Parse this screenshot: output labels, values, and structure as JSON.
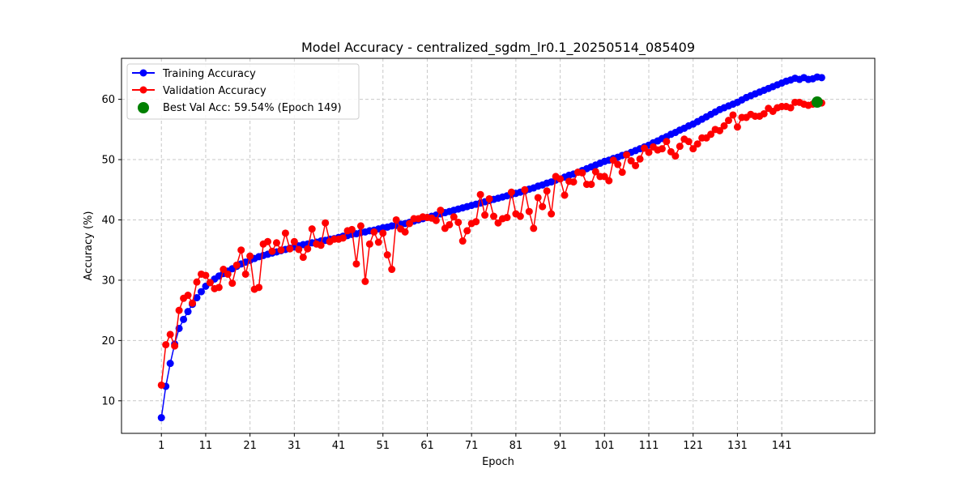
{
  "chart_data": {
    "type": "line",
    "title": "Model Accuracy - centralized_sgdm_lr0.1_20250514_085409",
    "xlabel": "Epoch",
    "ylabel": "Accuracy (%)",
    "xlim": [
      -8,
      162
    ],
    "ylim": [
      4.6,
      66.8
    ],
    "xticks": [
      1,
      11,
      21,
      31,
      41,
      51,
      61,
      71,
      81,
      91,
      101,
      111,
      121,
      131,
      141
    ],
    "yticks": [
      10,
      20,
      30,
      40,
      50,
      60
    ],
    "grid": true,
    "legend_position": "top-left",
    "series": [
      {
        "name": "Training Accuracy",
        "color": "#0000ff",
        "x_start": 1,
        "values": [
          7.2,
          12.4,
          16.2,
          19.4,
          22.0,
          23.5,
          24.8,
          26.0,
          27.1,
          28.1,
          29.0,
          29.6,
          30.2,
          30.7,
          31.1,
          31.5,
          31.9,
          32.3,
          32.7,
          33.0,
          33.3,
          33.6,
          33.9,
          34.1,
          34.3,
          34.5,
          34.7,
          34.9,
          35.1,
          35.3,
          35.5,
          35.7,
          35.9,
          36.0,
          36.2,
          36.3,
          36.5,
          36.6,
          36.8,
          36.9,
          37.1,
          37.3,
          37.4,
          37.6,
          37.7,
          37.9,
          38.0,
          38.2,
          38.3,
          38.5,
          38.7,
          38.8,
          39.0,
          39.1,
          39.3,
          39.4,
          39.6,
          39.8,
          40.0,
          40.2,
          40.4,
          40.6,
          40.8,
          41.0,
          41.2,
          41.4,
          41.6,
          41.8,
          42.0,
          42.2,
          42.4,
          42.6,
          42.8,
          43.0,
          43.2,
          43.4,
          43.6,
          43.8,
          44.0,
          44.2,
          44.4,
          44.6,
          44.8,
          45.1,
          45.3,
          45.6,
          45.8,
          46.1,
          46.3,
          46.6,
          46.8,
          47.1,
          47.4,
          47.6,
          47.9,
          48.2,
          48.5,
          48.8,
          49.1,
          49.4,
          49.7,
          49.9,
          50.2,
          50.4,
          50.7,
          50.9,
          51.2,
          51.5,
          51.8,
          52.1,
          52.4,
          52.8,
          53.1,
          53.5,
          53.8,
          54.2,
          54.5,
          54.9,
          55.2,
          55.6,
          55.9,
          56.3,
          56.7,
          57.1,
          57.5,
          57.9,
          58.3,
          58.6,
          58.9,
          59.2,
          59.5,
          59.9,
          60.3,
          60.6,
          60.9,
          61.2,
          61.5,
          61.8,
          62.1,
          62.4,
          62.7,
          63.0,
          63.2,
          63.5,
          63.3,
          63.6,
          63.3,
          63.4,
          63.7,
          63.6
        ]
      },
      {
        "name": "Validation Accuracy",
        "color": "#ff0000",
        "x_start": 1,
        "values": [
          12.6,
          19.3,
          21.0,
          19.1,
          25.0,
          27.0,
          27.5,
          26.2,
          29.7,
          31.0,
          30.8,
          29.6,
          28.6,
          28.8,
          31.8,
          31.0,
          29.5,
          32.5,
          35.0,
          31.0,
          34.0,
          28.5,
          28.8,
          36.0,
          36.4,
          34.8,
          36.2,
          35.0,
          37.8,
          35.2,
          36.4,
          35.1,
          33.8,
          35.2,
          38.5,
          36.0,
          35.8,
          39.5,
          36.4,
          36.8,
          36.8,
          37.0,
          38.2,
          38.4,
          32.7,
          39.0,
          29.8,
          36.0,
          38.0,
          36.3,
          37.8,
          34.2,
          31.8,
          40.0,
          38.5,
          38.0,
          39.4,
          40.2,
          40.2,
          40.5,
          40.4,
          40.3,
          39.9,
          41.6,
          38.6,
          39.2,
          40.5,
          39.6,
          36.5,
          38.2,
          39.4,
          39.7,
          44.2,
          40.8,
          43.5,
          40.6,
          39.5,
          40.2,
          40.4,
          44.6,
          41.0,
          40.6,
          45.0,
          41.4,
          38.6,
          43.7,
          42.2,
          44.8,
          41.0,
          47.2,
          46.8,
          44.1,
          46.4,
          46.3,
          47.9,
          47.8,
          45.9,
          45.9,
          48.0,
          47.2,
          47.2,
          46.5,
          49.9,
          49.2,
          47.9,
          50.8,
          49.8,
          49.0,
          50.1,
          51.9,
          51.2,
          52.1,
          51.6,
          51.8,
          53.0,
          51.3,
          50.6,
          52.2,
          53.4,
          53.0,
          51.8,
          52.6,
          53.6,
          53.6,
          54.2,
          55.0,
          54.8,
          55.6,
          56.5,
          57.4,
          55.4,
          57.0,
          57.0,
          57.5,
          57.2,
          57.2,
          57.6,
          58.5,
          58.0,
          58.6,
          58.8,
          58.8,
          58.6,
          59.5,
          59.5,
          59.2,
          59.0,
          59.2,
          59.54,
          59.4
        ]
      }
    ],
    "annotations": [
      {
        "type": "best-marker",
        "label": "Best Val Acc: 59.54% (Epoch 149)",
        "x": 149,
        "y": 59.54,
        "color": "#008000"
      }
    ]
  }
}
